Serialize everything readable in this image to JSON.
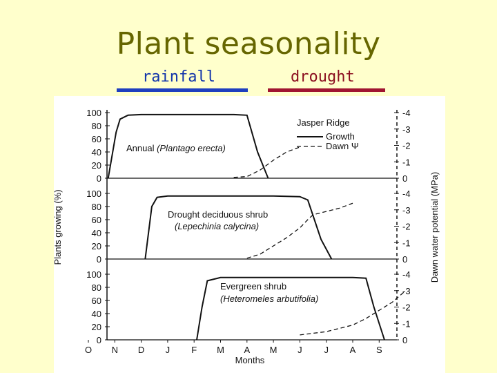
{
  "slide": {
    "title": "Plant seasonality",
    "legend": {
      "rainfall_label": "rainfall",
      "drought_label": "drought",
      "rainfall_color": "#1f3fbf",
      "drought_color": "#a01530"
    }
  },
  "chart_data": {
    "type": "line",
    "site_title": "Jasper Ridge",
    "legend": [
      {
        "name": "Growth",
        "style": "solid"
      },
      {
        "name": "Dawn Ψ",
        "style": "dashed"
      }
    ],
    "xlabel": "Months",
    "x_ticks": [
      "O",
      "N",
      "D",
      "J",
      "F",
      "M",
      "A",
      "M",
      "J",
      "J",
      "A",
      "S"
    ],
    "ylabel_left": "Plants growing (%)",
    "ylabel_right": "Dawn water potential (MPa)",
    "left_ticks": [
      "0",
      "20",
      "40",
      "60",
      "80",
      "100"
    ],
    "right_ticks": [
      "0",
      "-1",
      "-2",
      "-3",
      "-4"
    ],
    "ylim_left": [
      0,
      100
    ],
    "ylim_right": [
      0,
      -4
    ],
    "panels": [
      {
        "label": "Annual",
        "species": "(Plantago erecta)",
        "growth": {
          "x": [
            0.75,
            1.05,
            1.2,
            1.5,
            2.0,
            3.0,
            4.0,
            5.0,
            5.5,
            6.0,
            6.4,
            6.8
          ],
          "y": [
            0,
            70,
            90,
            96,
            97,
            97,
            97,
            97,
            97,
            96,
            40,
            0
          ]
        },
        "dawn_psi": {
          "x": [
            5.5,
            6.0,
            6.5,
            7.0,
            7.5,
            8.0
          ],
          "y": [
            -0.05,
            -0.1,
            -0.5,
            -1.1,
            -1.6,
            -1.9
          ]
        }
      },
      {
        "label": "Drought deciduous shrub",
        "species": "(Lepechinia calycina)",
        "growth": {
          "x": [
            2.15,
            2.4,
            2.6,
            3.0,
            4.0,
            5.0,
            6.0,
            7.0,
            8.0,
            8.3,
            8.8,
            9.2
          ],
          "y": [
            0,
            80,
            94,
            96,
            96,
            96,
            96,
            96,
            95,
            90,
            30,
            0
          ]
        },
        "dawn_psi": {
          "x": [
            6.0,
            6.5,
            7.0,
            7.5,
            8.0,
            8.3,
            8.5,
            9.0,
            9.5,
            10.0
          ],
          "y": [
            -0.05,
            -0.3,
            -0.8,
            -1.3,
            -1.9,
            -2.4,
            -2.7,
            -2.9,
            -3.1,
            -3.4
          ]
        }
      },
      {
        "label": "Evergreen shrub",
        "species": "(Heteromeles arbutifolia)",
        "growth": {
          "x": [
            4.1,
            4.3,
            4.5,
            5.0,
            6.0,
            7.0,
            8.0,
            9.0,
            10.0,
            10.5,
            10.8,
            11.2
          ],
          "y": [
            0,
            50,
            90,
            95,
            95,
            95,
            95,
            95,
            95,
            94,
            50,
            0
          ]
        },
        "dawn_psi": {
          "x": [
            8.0,
            9.0,
            10.0,
            10.5,
            11.0,
            11.5,
            12.0
          ],
          "y": [
            -0.3,
            -0.5,
            -0.9,
            -1.3,
            -1.8,
            -2.3,
            -3.0
          ]
        }
      }
    ]
  }
}
